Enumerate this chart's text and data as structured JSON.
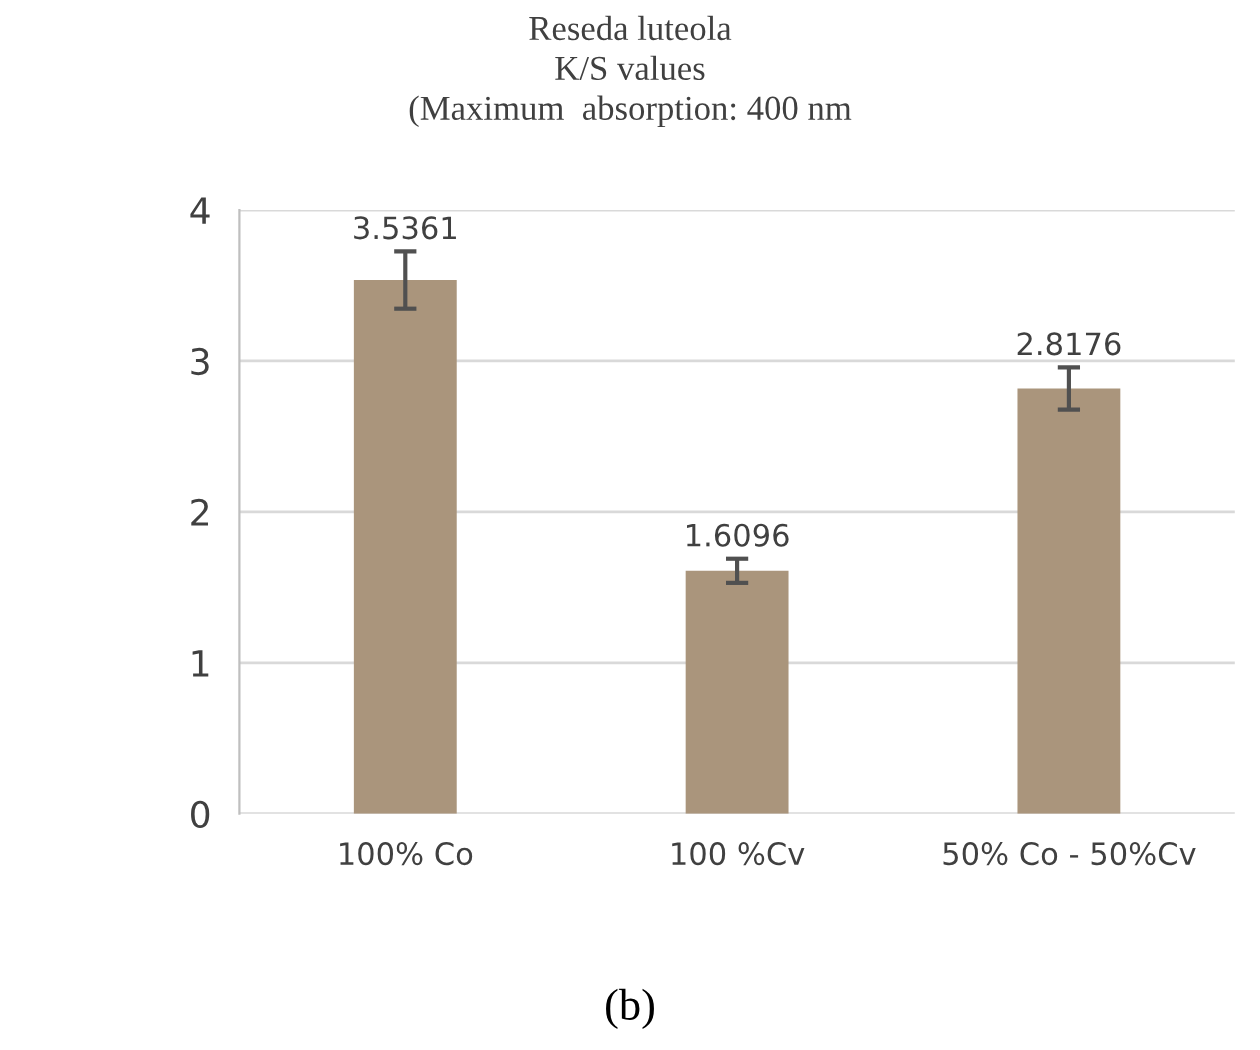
{
  "chart_data": {
    "type": "bar",
    "title": "Reseda luteola\nK/S values\n(Maximum  absorption: 400 nm",
    "categories": [
      "100% Co",
      "100 %Cv",
      "50% Co - 50%Cv"
    ],
    "values": [
      3.5361,
      1.6096,
      2.8176
    ],
    "errors": [
      0.19,
      0.08,
      0.14
    ],
    "color": "#aa957c",
    "data_labels": true,
    "ylim": [
      0,
      4
    ],
    "yticks": [
      0,
      1,
      2,
      3,
      4
    ],
    "grid": "y",
    "annotations": [
      "(b)"
    ]
  }
}
